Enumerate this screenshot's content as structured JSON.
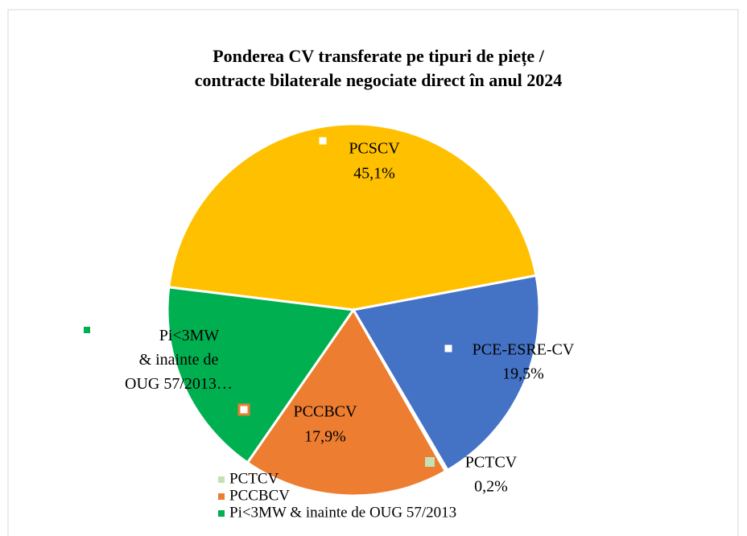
{
  "chart_data": {
    "type": "pie",
    "title": [
      "Ponderea CV transferate pe tipuri de piețe /",
      "contracte bilaterale negociate direct în anul 2024"
    ],
    "categories": [
      "PCSCV",
      "PCE-ESRE-CV",
      "PCTCV",
      "PCCBCV",
      "Pi<3MW & inainte de OUG 57/2013"
    ],
    "data_label_texts": [
      "PCSCV",
      "PCE-ESRE-CV",
      "PCTCV",
      "PCCBCV",
      "Pi<3MW & inainte de OUG 57/2013…"
    ],
    "values": [
      45.1,
      19.5,
      0.2,
      17.9,
      17.3
    ],
    "value_labels": [
      "45,1%",
      "19,5%",
      "0,2%",
      "17,9%",
      null
    ],
    "colors": [
      "#FFC000",
      "#4472C4",
      "#C5E0B4",
      "#ED7D31",
      "#00B050"
    ],
    "legend": "bottom"
  }
}
